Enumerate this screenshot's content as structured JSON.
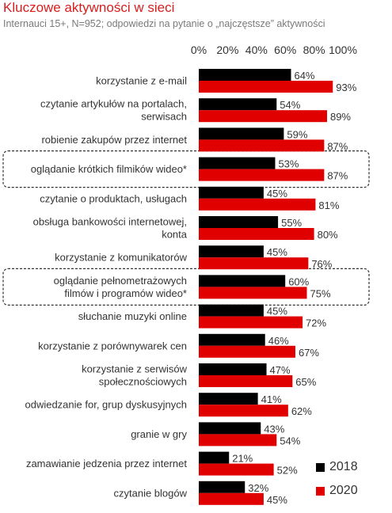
{
  "title": "Kluczowe aktywności w sieci",
  "subtitle": "Internauci 15+, N=952; odpowiedzi  na pytanie o „najczęstsze” aktywności",
  "colors": {
    "series_2018": "#000000",
    "series_2020": "#e00000",
    "title": "#d81e1e",
    "highlight_border": "#333333"
  },
  "legend": [
    {
      "label": "2018",
      "color": "#000000"
    },
    {
      "label": "2020",
      "color": "#e00000"
    }
  ],
  "chart_data": {
    "type": "bar",
    "orientation": "horizontal",
    "xlim": [
      0,
      100
    ],
    "x_ticks": [
      "0%",
      "20%",
      "40%",
      "60%",
      "80%",
      "100%"
    ],
    "grid": false,
    "legend_position": "bottom-right",
    "categories": [
      [
        "korzystanie z e-mail"
      ],
      [
        "czytanie artykułów na portalach,",
        "serwisach"
      ],
      [
        "robienie zakupów przez internet"
      ],
      [
        "oglądanie krótkich filmików wideo*"
      ],
      [
        "czytanie o produktach, usługach"
      ],
      [
        "obsługa bankowości internetowej,",
        "konta"
      ],
      [
        "korzystanie z komunikatorów"
      ],
      [
        "oglądanie pełnometrażowych",
        "filmów i programów wideo*"
      ],
      [
        "słuchanie muzyki online"
      ],
      [
        "korzystanie z porównywarek cen"
      ],
      [
        "korzystanie z serwisów",
        "społecznościowych"
      ],
      [
        "odwiedzanie for, grup dyskusyjnych"
      ],
      [
        "granie w gry"
      ],
      [
        "zamawianie jedzenia przez internet"
      ],
      [
        "czytanie blogów"
      ]
    ],
    "highlighted": [
      3,
      7
    ],
    "series": [
      {
        "name": "2018",
        "values": [
          64,
          54,
          59,
          53,
          45,
          55,
          45,
          60,
          45,
          46,
          47,
          41,
          43,
          21,
          32
        ]
      },
      {
        "name": "2020",
        "values": [
          93,
          89,
          87,
          87,
          81,
          80,
          76,
          75,
          72,
          67,
          65,
          62,
          54,
          52,
          45
        ]
      }
    ]
  }
}
